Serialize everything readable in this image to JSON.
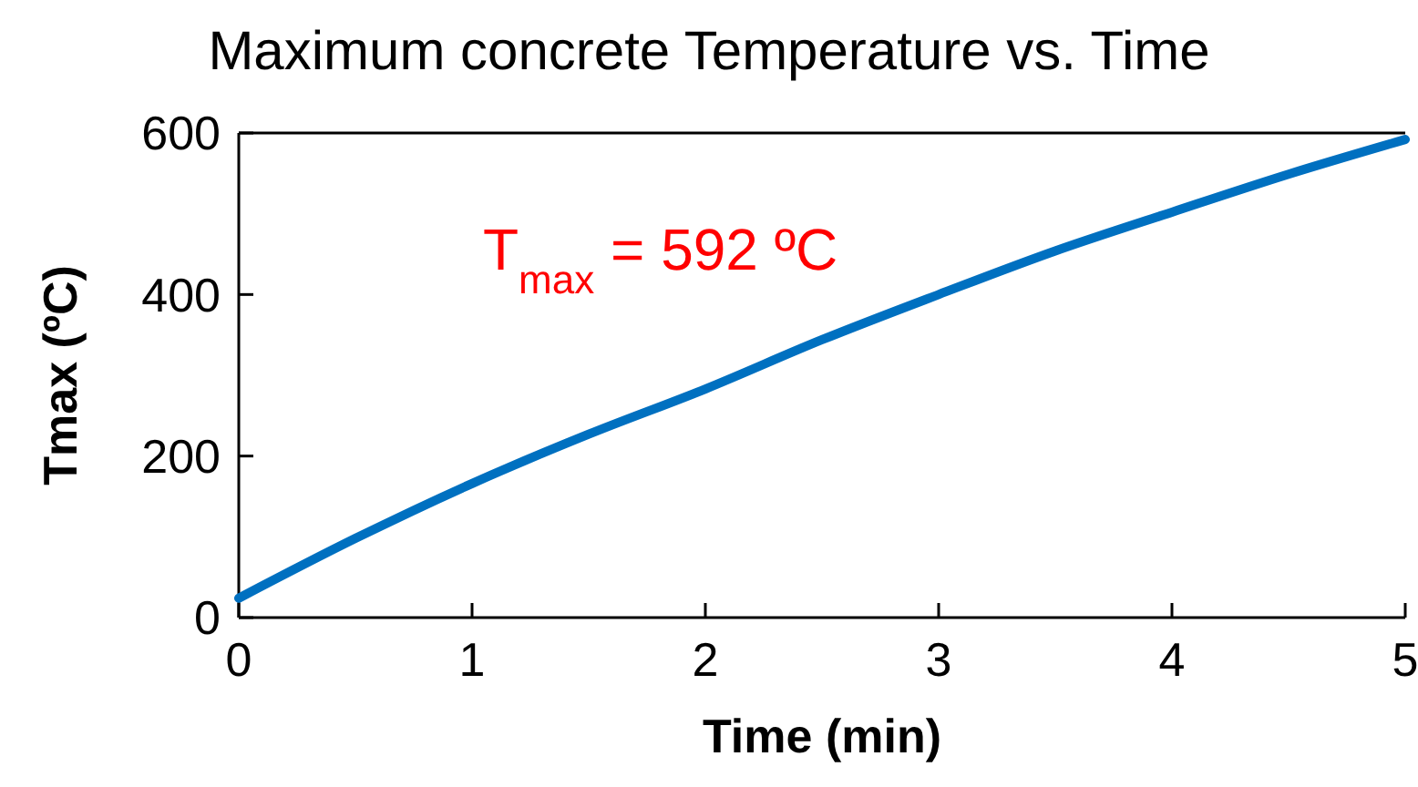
{
  "chart_data": {
    "type": "line",
    "title": "Maximum concrete Temperature vs. Time",
    "xlabel": "Time (min)",
    "ylabel": "Tmax (ºC)",
    "x": [
      0,
      0.5,
      1,
      1.5,
      2,
      2.5,
      3,
      3.5,
      4,
      4.5,
      5
    ],
    "series": [
      {
        "color": "#0070c0",
        "values": [
          24,
          98,
          166,
          227,
          283,
          344,
          400,
          454,
          502,
          549,
          592
        ]
      }
    ],
    "xlim": [
      0,
      5
    ],
    "xticks": [
      0,
      1,
      2,
      3,
      4,
      5
    ],
    "ylim": [
      0,
      600
    ],
    "yticks": [
      0,
      200,
      400,
      600
    ],
    "annotations": [
      "T$_{max}$ = 592 ºC"
    ],
    "grid": false,
    "marker": "none",
    "line_style": "solid"
  }
}
